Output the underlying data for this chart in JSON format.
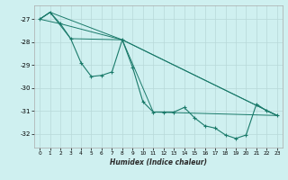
{
  "xlabel": "Humidex (Indice chaleur)",
  "background_color": "#cff0f0",
  "grid_color": "#b8d8d8",
  "line_color": "#1a7a6a",
  "xlim": [
    -0.5,
    23.5
  ],
  "ylim": [
    -32.6,
    -26.4
  ],
  "yticks": [
    -32,
    -31,
    -30,
    -29,
    -28,
    -27
  ],
  "xticks": [
    0,
    1,
    2,
    3,
    4,
    5,
    6,
    7,
    8,
    9,
    10,
    11,
    12,
    13,
    14,
    15,
    16,
    17,
    18,
    19,
    20,
    21,
    22,
    23
  ],
  "series": [
    {
      "points": [
        [
          0,
          -27.0
        ],
        [
          1,
          -26.7
        ],
        [
          2,
          -27.2
        ],
        [
          3,
          -27.85
        ],
        [
          4,
          -28.9
        ],
        [
          5,
          -29.5
        ],
        [
          6,
          -29.45
        ],
        [
          7,
          -29.3
        ],
        [
          8,
          -27.9
        ],
        [
          9,
          -29.1
        ],
        [
          10,
          -30.6
        ],
        [
          11,
          -31.05
        ],
        [
          12,
          -31.05
        ],
        [
          13,
          -31.05
        ],
        [
          14,
          -30.85
        ],
        [
          15,
          -31.3
        ],
        [
          16,
          -31.65
        ],
        [
          17,
          -31.75
        ],
        [
          18,
          -32.05
        ],
        [
          19,
          -32.2
        ],
        [
          20,
          -32.05
        ],
        [
          21,
          -30.7
        ],
        [
          22,
          -31.0
        ],
        [
          23,
          -31.2
        ]
      ],
      "marker": true
    },
    {
      "points": [
        [
          0,
          -27.0
        ],
        [
          1,
          -26.7
        ],
        [
          8,
          -27.9
        ],
        [
          23,
          -31.2
        ]
      ],
      "marker": false
    },
    {
      "points": [
        [
          0,
          -27.0
        ],
        [
          2,
          -27.2
        ],
        [
          8,
          -27.9
        ],
        [
          23,
          -31.2
        ]
      ],
      "marker": false
    },
    {
      "points": [
        [
          0,
          -27.0
        ],
        [
          1,
          -26.7
        ],
        [
          3,
          -27.85
        ],
        [
          8,
          -27.9
        ],
        [
          11,
          -31.05
        ],
        [
          23,
          -31.2
        ]
      ],
      "marker": false
    }
  ]
}
